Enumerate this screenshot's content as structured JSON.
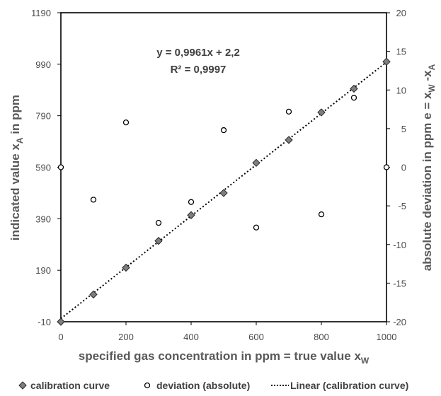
{
  "chart_data": {
    "type": "scatter",
    "x_axis": {
      "label": "specified gas concentration in ppm = true value x",
      "label_sub": "W",
      "range": [
        0,
        1000
      ],
      "ticks": [
        "0",
        "200",
        "400",
        "600",
        "800",
        "1000"
      ]
    },
    "y_axis_left": {
      "label": "indicated value  x",
      "label_sub": "A",
      "label_tail": " in ppm",
      "range": [
        -10,
        1190
      ],
      "ticks": [
        "-10",
        "190",
        "390",
        "590",
        "790",
        "990",
        "1190"
      ]
    },
    "y_axis_right": {
      "label": "absolute deviation in ppm  e = x",
      "label_sub1": "W",
      "label_mid": " -x",
      "label_sub2": "A",
      "range": [
        -20,
        20
      ],
      "ticks": [
        "-20",
        "-15",
        "-10",
        "-5",
        "0",
        "5",
        "10",
        "15",
        "20"
      ]
    },
    "series": [
      {
        "name": "calibration curve",
        "axis": "left",
        "marker": "diamond",
        "points": [
          [
            0,
            -10
          ],
          [
            100,
            96
          ],
          [
            200,
            200
          ],
          [
            300,
            304
          ],
          [
            400,
            404
          ],
          [
            500,
            490
          ],
          [
            600,
            607
          ],
          [
            700,
            696
          ],
          [
            800,
            803
          ],
          [
            900,
            895
          ],
          [
            1000,
            1000
          ]
        ]
      },
      {
        "name": "deviation (absolute)",
        "axis": "right",
        "marker": "circle",
        "points": [
          [
            0,
            0
          ],
          [
            100,
            -4.2
          ],
          [
            200,
            5.8
          ],
          [
            300,
            -7.2
          ],
          [
            400,
            -4.5
          ],
          [
            500,
            4.8
          ],
          [
            600,
            -7.8
          ],
          [
            700,
            7.2
          ],
          [
            800,
            -6.1
          ],
          [
            900,
            9
          ],
          [
            1000,
            0
          ]
        ]
      }
    ],
    "trendline": {
      "name": "Linear (calibration curve)",
      "slope": 0.9961,
      "intercept": 2.2,
      "style": "dotted"
    },
    "annotations": [
      "y = 0,9961x + 2,2",
      "R² = 0,9997"
    ],
    "grid": false,
    "legend_position": "bottom"
  },
  "colors": {
    "marker_fill": "#7f7f7f",
    "marker_stroke": "#262626",
    "axis": "#000000",
    "trend": "#000000"
  }
}
